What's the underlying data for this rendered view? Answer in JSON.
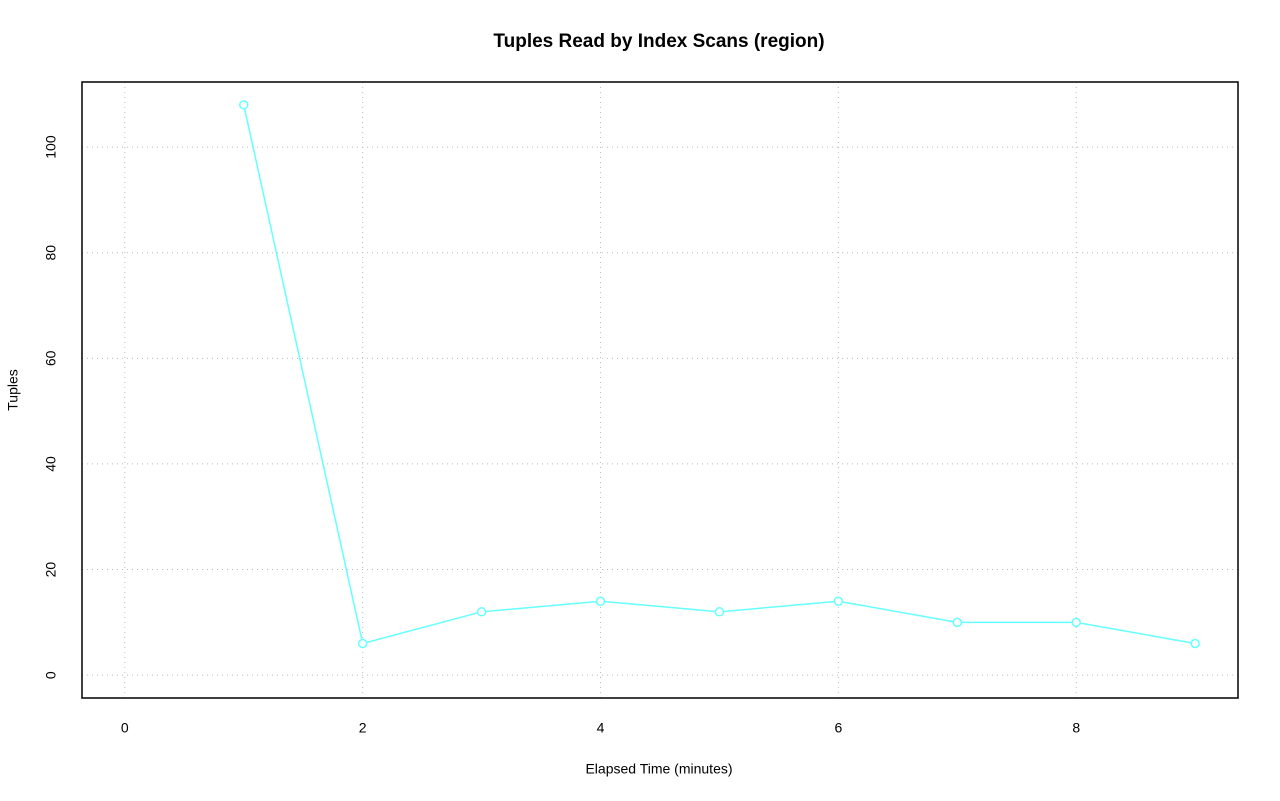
{
  "chart_data": {
    "type": "line",
    "title": "Tuples Read by Index Scans (region)",
    "x_label": "Elapsed Time (minutes)",
    "y_label": "Tuples",
    "x": [
      1,
      2,
      3,
      4,
      5,
      6,
      7,
      8,
      9
    ],
    "series": [
      {
        "color": "#66ffff",
        "values": [
          108,
          6,
          12,
          14,
          12,
          14,
          10,
          10,
          6
        ]
      }
    ],
    "xlim": [
      -0.36,
      9.36
    ],
    "xticks": [
      0,
      2,
      4,
      6,
      8
    ],
    "ylim": [
      -4.32,
      112.32
    ],
    "yticks": [
      0,
      20,
      40,
      60,
      80,
      100
    ],
    "grid": true
  }
}
